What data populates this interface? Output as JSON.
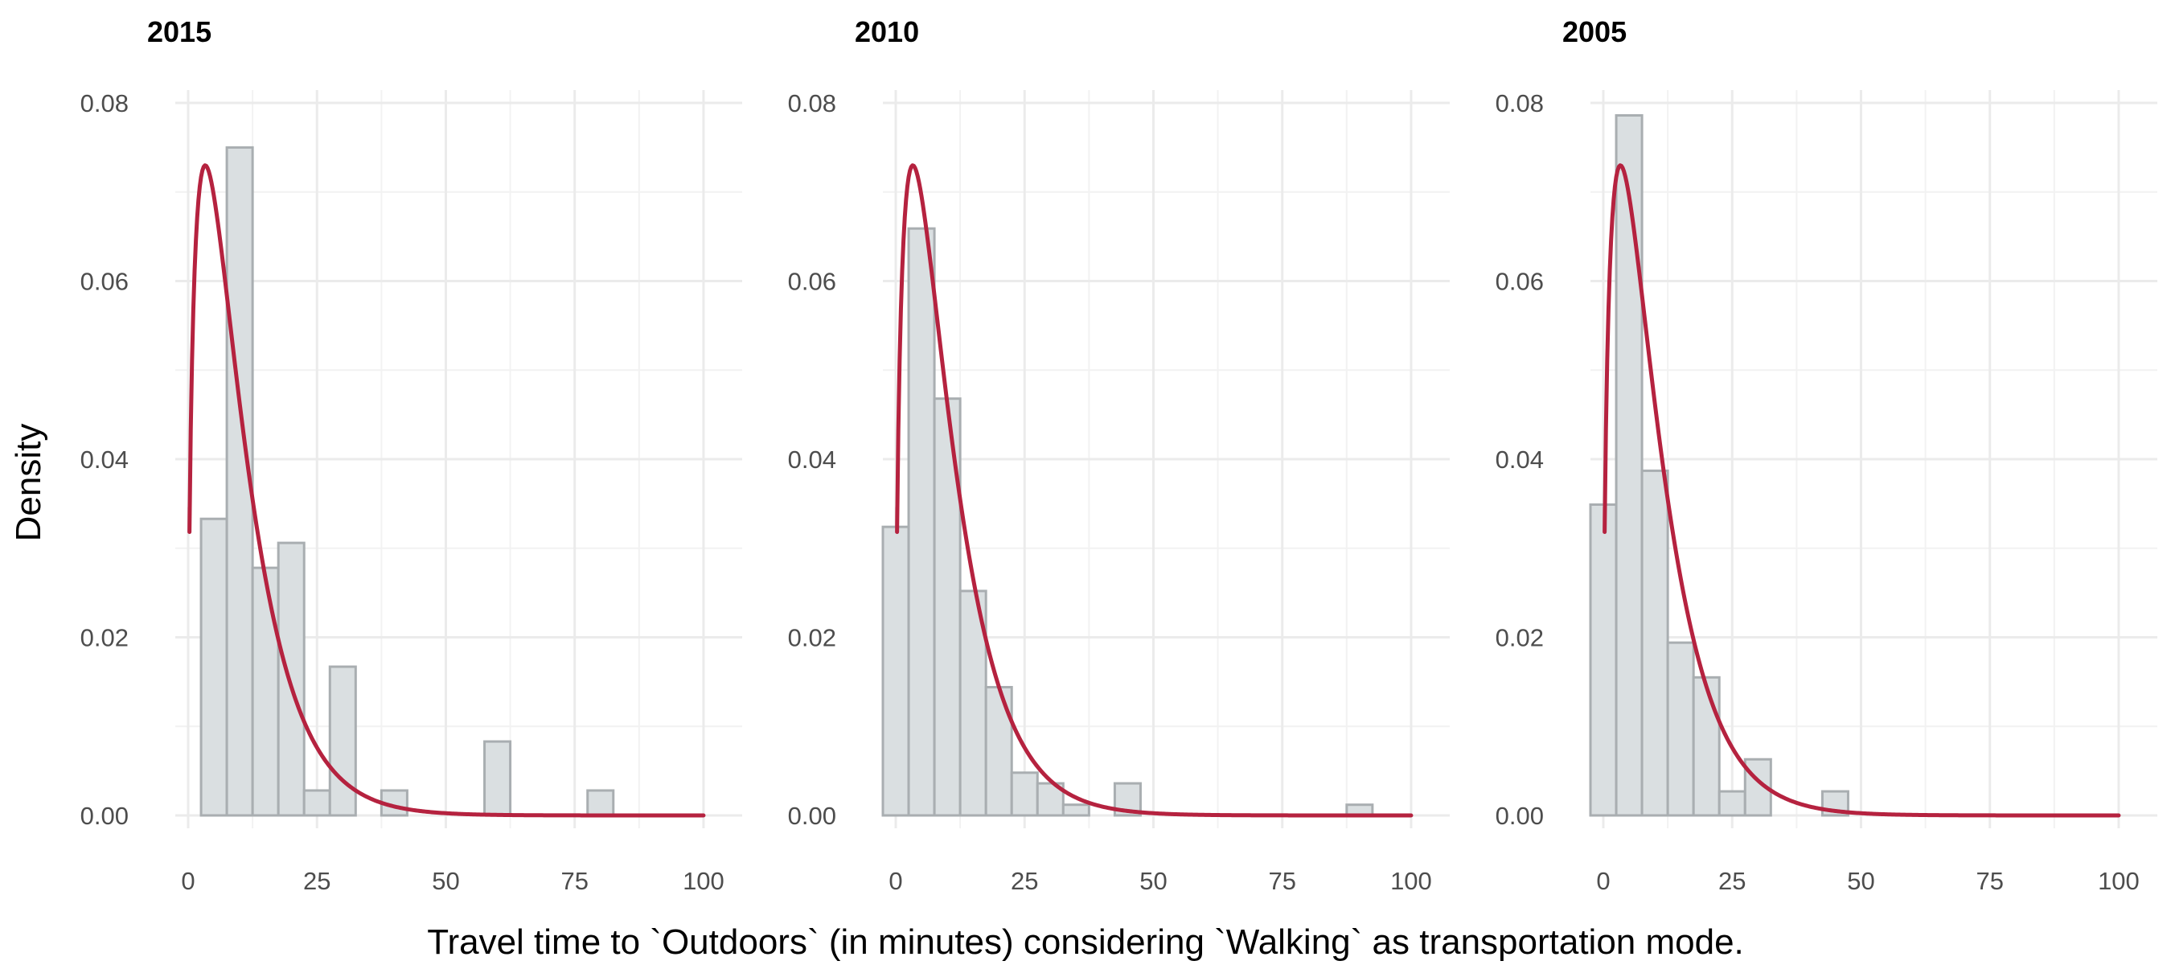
{
  "figure": {
    "xlabel": "Travel time to `Outdoors` (in minutes) considering `Walking` as transportation mode.",
    "ylabel": "Density"
  },
  "colors": {
    "bar_fill": "#dadfe1",
    "bar_stroke": "#a9aeb1",
    "curve": "#b5223f",
    "grid": "#ebebeb"
  },
  "chart_data": [
    {
      "type": "bar",
      "title": "2015",
      "xlim": [
        -2.5,
        107.5
      ],
      "ylim": [
        0,
        0.08
      ],
      "xticks": [
        "0",
        "25",
        "50",
        "75",
        "100"
      ],
      "yticks": [
        "0.00",
        "0.02",
        "0.04",
        "0.06",
        "0.08"
      ],
      "bin_width": 5,
      "bins": [
        {
          "x": 0,
          "density": 0.0
        },
        {
          "x": 5,
          "density": 0.0333
        },
        {
          "x": 10,
          "density": 0.075
        },
        {
          "x": 15,
          "density": 0.0278
        },
        {
          "x": 20,
          "density": 0.0306
        },
        {
          "x": 25,
          "density": 0.0028
        },
        {
          "x": 30,
          "density": 0.0167
        },
        {
          "x": 35,
          "density": 0.0
        },
        {
          "x": 40,
          "density": 0.0028
        },
        {
          "x": 45,
          "density": 0.0
        },
        {
          "x": 50,
          "density": 0.0
        },
        {
          "x": 55,
          "density": 0.0
        },
        {
          "x": 60,
          "density": 0.0083
        },
        {
          "x": 65,
          "density": 0.0
        },
        {
          "x": 70,
          "density": 0.0
        },
        {
          "x": 75,
          "density": 0.0
        },
        {
          "x": 80,
          "density": 0.0028
        },
        {
          "x": 85,
          "density": 0.0
        },
        {
          "x": 90,
          "density": 0.0
        },
        {
          "x": 95,
          "density": 0.0
        },
        {
          "x": 100,
          "density": 0.0
        }
      ],
      "curve": {
        "shape": 1.5,
        "scale": 6.63,
        "x_range": [
          0,
          100
        ]
      }
    },
    {
      "type": "bar",
      "title": "2010",
      "xlim": [
        -2.5,
        107.5
      ],
      "ylim": [
        0,
        0.08
      ],
      "xticks": [
        "0",
        "25",
        "50",
        "75",
        "100"
      ],
      "yticks": [
        "0.00",
        "0.02",
        "0.04",
        "0.06",
        "0.08"
      ],
      "bin_width": 5,
      "bins": [
        {
          "x": 0,
          "density": 0.0324
        },
        {
          "x": 5,
          "density": 0.0659
        },
        {
          "x": 10,
          "density": 0.0468
        },
        {
          "x": 15,
          "density": 0.0252
        },
        {
          "x": 20,
          "density": 0.0144
        },
        {
          "x": 25,
          "density": 0.0048
        },
        {
          "x": 30,
          "density": 0.0036
        },
        {
          "x": 35,
          "density": 0.0012
        },
        {
          "x": 40,
          "density": 0.0
        },
        {
          "x": 45,
          "density": 0.0036
        },
        {
          "x": 50,
          "density": 0.0
        },
        {
          "x": 55,
          "density": 0.0
        },
        {
          "x": 60,
          "density": 0.0
        },
        {
          "x": 65,
          "density": 0.0
        },
        {
          "x": 70,
          "density": 0.0
        },
        {
          "x": 75,
          "density": 0.0
        },
        {
          "x": 80,
          "density": 0.0
        },
        {
          "x": 85,
          "density": 0.0
        },
        {
          "x": 90,
          "density": 0.0012
        },
        {
          "x": 95,
          "density": 0.0
        },
        {
          "x": 100,
          "density": 0.0
        }
      ],
      "curve": {
        "shape": 1.5,
        "scale": 6.63,
        "x_range": [
          0,
          100
        ]
      }
    },
    {
      "type": "bar",
      "title": "2005",
      "xlim": [
        -2.5,
        107.5
      ],
      "ylim": [
        0,
        0.08
      ],
      "xticks": [
        "0",
        "25",
        "50",
        "75",
        "100"
      ],
      "yticks": [
        "0.00",
        "0.02",
        "0.04",
        "0.06",
        "0.08"
      ],
      "bin_width": 5,
      "bins": [
        {
          "x": 0,
          "density": 0.0349
        },
        {
          "x": 5,
          "density": 0.0786
        },
        {
          "x": 10,
          "density": 0.0387
        },
        {
          "x": 15,
          "density": 0.0194
        },
        {
          "x": 20,
          "density": 0.0155
        },
        {
          "x": 25,
          "density": 0.0027
        },
        {
          "x": 30,
          "density": 0.0063
        },
        {
          "x": 35,
          "density": 0.0
        },
        {
          "x": 40,
          "density": 0.0
        },
        {
          "x": 45,
          "density": 0.0027
        },
        {
          "x": 50,
          "density": 0.0
        },
        {
          "x": 55,
          "density": 0.0
        },
        {
          "x": 60,
          "density": 0.0
        },
        {
          "x": 65,
          "density": 0.0
        },
        {
          "x": 70,
          "density": 0.0
        },
        {
          "x": 75,
          "density": 0.0
        },
        {
          "x": 80,
          "density": 0.0
        },
        {
          "x": 85,
          "density": 0.0
        },
        {
          "x": 90,
          "density": 0.0
        },
        {
          "x": 95,
          "density": 0.0
        },
        {
          "x": 100,
          "density": 0.0
        }
      ],
      "curve": {
        "shape": 1.5,
        "scale": 6.63,
        "x_range": [
          0,
          100
        ]
      }
    }
  ]
}
